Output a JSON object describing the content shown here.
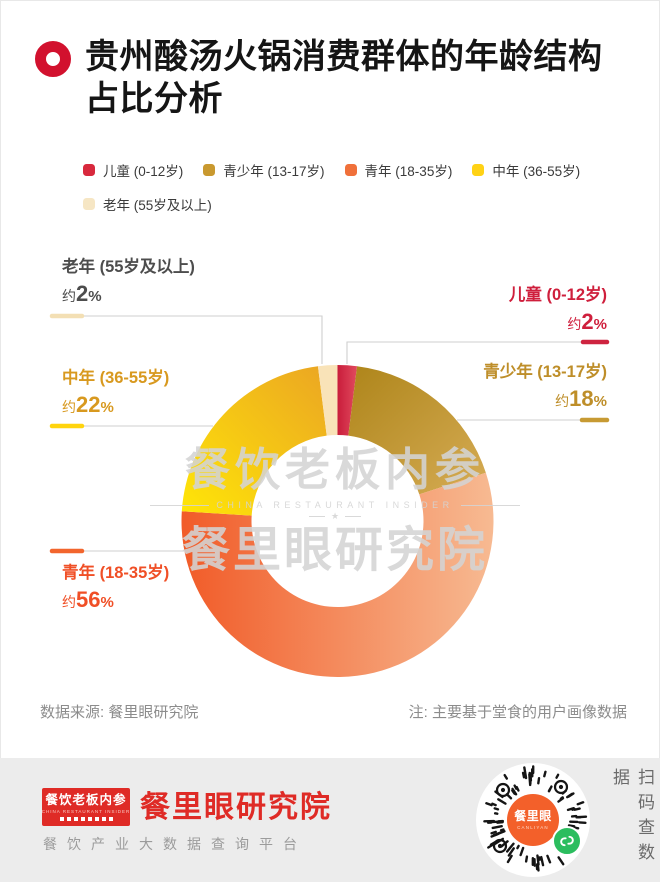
{
  "header": {
    "title_line1": "贵州酸汤火锅消费群体的年龄结构",
    "title_line2": "占比分析"
  },
  "colors": {
    "accent_red": "#D2112E",
    "connector_gray": "#CFCFCF",
    "band_bg": "#ECECEC",
    "brand_red": "#DF2B26",
    "wechat_green": "#2BBD5E",
    "qr_center_orange": "#F3602A"
  },
  "chart_data": {
    "type": "pie",
    "subtype": "donut",
    "title": "贵州酸汤火锅消费群体的年龄结构占比分析",
    "unit": "%",
    "start_angle_deg": 0,
    "direction": "clockwise",
    "legend_position": "top",
    "series": [
      {
        "name": "儿童 (0-12岁)",
        "value": 2,
        "label": {
          "prefix": "约",
          "number": "2",
          "unit": "%"
        },
        "colors": {
          "from": "#C91D3B",
          "to": "#E14A5E",
          "swatch": "#D8293D",
          "text": "#CF1F3C",
          "bar": "#CE2440"
        }
      },
      {
        "name": "青少年 (13-17岁)",
        "value": 18,
        "label": {
          "prefix": "约",
          "number": "18",
          "unit": "%"
        },
        "colors": {
          "from": "#AE851A",
          "to": "#D6AC55",
          "swatch": "#C9992F",
          "text": "#BE8E29",
          "bar": "#C79A33"
        }
      },
      {
        "name": "青年 (18-35岁)",
        "value": 56,
        "label": {
          "prefix": "约",
          "number": "56",
          "unit": "%"
        },
        "colors": {
          "from": "#F15B28",
          "to": "#F7BA92",
          "swatch": "#F0703A",
          "text": "#F04F26",
          "bar": "#F2652D"
        }
      },
      {
        "name": "中年 (36-55岁)",
        "value": 22,
        "label": {
          "prefix": "约",
          "number": "22",
          "unit": "%"
        },
        "colors": {
          "from": "#FFE607",
          "to": "#EBA623",
          "swatch": "#FFD215",
          "text": "#D8991F",
          "bar": "#FFD40E"
        }
      },
      {
        "name": "老年 (55岁及以上)",
        "value": 2,
        "label": {
          "prefix": "约",
          "number": "2",
          "unit": "%"
        },
        "colors": {
          "from": "#F9E3B8",
          "to": "#F9E3B8",
          "swatch": "#F6E6C4",
          "text": "#4D4D4D",
          "bar": "#F3DFB4"
        }
      }
    ]
  },
  "watermark": {
    "line1": "餐饮老板内参",
    "line2": "CHINA RESTAURANT INSIDER",
    "star": "★",
    "line3": "餐里眼研究院"
  },
  "footer": {
    "source": "数据来源: 餐里眼研究院",
    "note": "注: 主要基于堂食的用户画像数据"
  },
  "brand_band": {
    "logo_title": "餐饮老板内参",
    "logo_subtitle": "CHINA RESTAURANT INSIDER",
    "research_name": "餐里眼研究院",
    "tagline": "餐饮产业大数据查询平台",
    "qr_center": "餐里眼",
    "qr_center_sub": "CANLIYAN",
    "qr_side_text": "扫码查数据"
  }
}
